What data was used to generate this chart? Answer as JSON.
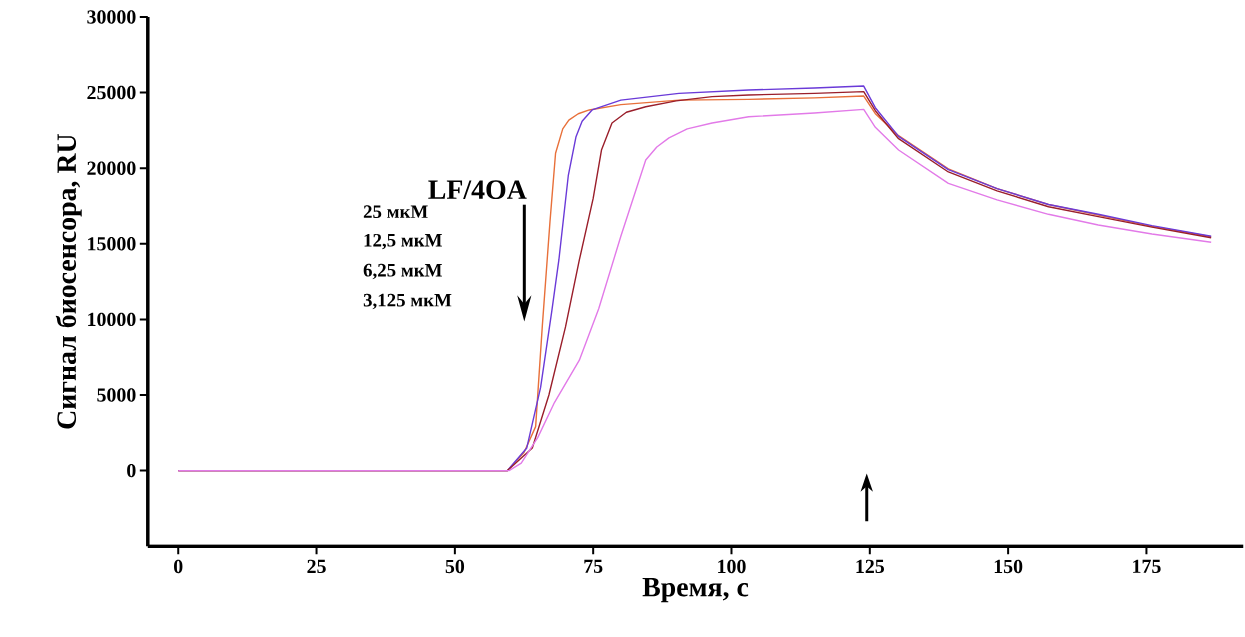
{
  "chart_data": {
    "type": "line",
    "xlabel": "Время, с",
    "ylabel": "Сигнал биосенсора, RU",
    "xlim": [
      -5.5,
      192.5
    ],
    "ylim": [
      -5000,
      30000
    ],
    "xticks": [
      0,
      25,
      50,
      75,
      100,
      125,
      150,
      175
    ],
    "yticks": [
      0,
      5000,
      10000,
      15000,
      20000,
      25000,
      30000
    ],
    "marker": "none",
    "line_style": "solid",
    "annotations": [
      "LF/4OA",
      "25 мкМ",
      "12,5 мкМ",
      "6,25 мкМ",
      "3,125 мкМ"
    ],
    "series": [
      {
        "color": "#e8703a",
        "x": [
          0,
          59.5,
          62.5,
          64.6,
          65.8,
          67.2,
          68.2,
          69.5,
          70.6,
          72.3,
          74.3,
          80,
          90.5,
          103.1,
          115,
          123.9,
          126,
          130.2,
          139.2,
          148,
          157.3,
          166.3,
          176,
          186.7
        ],
        "values": [
          0,
          0,
          1200,
          2910,
          9520,
          16500,
          20990,
          22600,
          23180,
          23600,
          23850,
          24200,
          24500,
          24550,
          24650,
          24770,
          23600,
          22150,
          19950,
          18650,
          17600,
          16900,
          16150,
          15470
        ]
      },
      {
        "color": "#6a3ad8",
        "x": [
          0,
          59.5,
          63,
          65.5,
          67.5,
          68.8,
          70.5,
          71.9,
          73,
          74.8,
          80,
          90.5,
          103.1,
          115,
          123.9,
          126,
          130.2,
          139.2,
          148,
          157.3,
          166.3,
          176,
          186.7
        ],
        "values": [
          0,
          0,
          1500,
          5500,
          10500,
          13930,
          19500,
          22080,
          23100,
          23850,
          24500,
          24950,
          25170,
          25300,
          25430,
          24000,
          22100,
          19900,
          18650,
          17600,
          16950,
          16200,
          15500
        ]
      },
      {
        "color": "#9a1e2a",
        "x": [
          0,
          59.5,
          64,
          67,
          70,
          72.5,
          75,
          76.5,
          78.4,
          81,
          84.5,
          90,
          96.5,
          103.1,
          115,
          123.9,
          126,
          130.2,
          139.2,
          148,
          157.3,
          166.3,
          176,
          186.7
        ],
        "values": [
          0,
          0,
          1500,
          5000,
          9500,
          13930,
          18000,
          21200,
          22990,
          23700,
          24060,
          24450,
          24730,
          24840,
          24950,
          25060,
          23800,
          21950,
          19750,
          18500,
          17450,
          16800,
          16100,
          15400
        ]
      },
      {
        "color": "#e27ae8",
        "x": [
          0,
          59.8,
          62,
          65,
          68,
          72.5,
          76,
          80,
          84.5,
          86.5,
          88.7,
          92,
          96.5,
          103.1,
          115,
          123.9,
          126,
          130.2,
          139.2,
          148,
          157.3,
          166.3,
          176,
          186.7
        ],
        "values": [
          0,
          0,
          500,
          2200,
          4500,
          7300,
          10700,
          15500,
          20540,
          21400,
          22000,
          22600,
          22990,
          23400,
          23650,
          23890,
          22700,
          21200,
          19000,
          17900,
          16950,
          16240,
          15650,
          15100
        ]
      }
    ]
  }
}
